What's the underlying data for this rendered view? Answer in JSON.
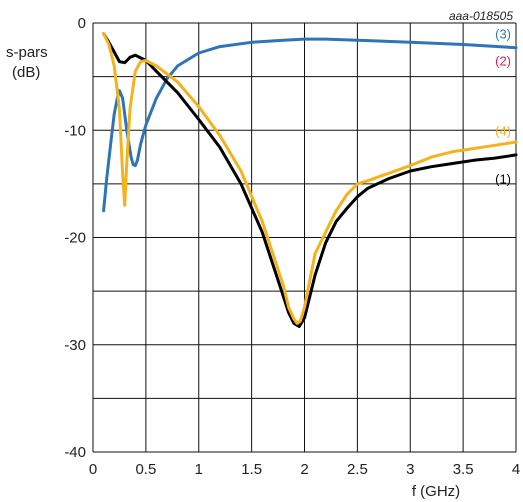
{
  "chart_data": {
    "type": "line",
    "reference": "aaa-018505",
    "ylabel_line1": "s-pars",
    "ylabel_line2": "(dB)",
    "xlabel": "f (GHz)",
    "xlim": [
      0,
      4
    ],
    "ylim": [
      -40,
      0
    ],
    "x_ticks": [
      0,
      0.5,
      1,
      1.5,
      2,
      2.5,
      3,
      3.5,
      4
    ],
    "x_tick_labels": [
      "0",
      "0.5",
      "1",
      "1.5",
      "2",
      "2.5",
      "3",
      "3.5",
      "4"
    ],
    "y_ticks": [
      0,
      -10,
      -20,
      -30,
      -40
    ],
    "y_tick_labels": [
      "0",
      "-10",
      "-20",
      "-30",
      "-40"
    ],
    "y_gridlines": [
      0,
      -5,
      -10,
      -15,
      -20,
      -25,
      -30,
      -35,
      -40
    ],
    "grid": true,
    "series": [
      {
        "name": "(1)",
        "color": "#000000",
        "x": [
          0.1,
          0.15,
          0.2,
          0.25,
          0.3,
          0.35,
          0.4,
          0.5,
          0.6,
          0.8,
          1.0,
          1.2,
          1.4,
          1.6,
          1.7,
          1.8,
          1.85,
          1.9,
          1.95,
          2.0,
          2.05,
          2.1,
          2.2,
          2.3,
          2.4,
          2.5,
          2.6,
          2.8,
          3.0,
          3.2,
          3.4,
          3.6,
          3.8,
          4.0
        ],
        "y": [
          -1.0,
          -1.8,
          -2.7,
          -3.6,
          -3.7,
          -3.2,
          -3.0,
          -3.5,
          -4.5,
          -6.5,
          -9.0,
          -11.6,
          -15.0,
          -19.5,
          -22.5,
          -25.5,
          -27.0,
          -28.0,
          -28.3,
          -27.5,
          -25.5,
          -23.5,
          -20.5,
          -18.5,
          -17.3,
          -16.2,
          -15.4,
          -14.5,
          -13.8,
          -13.4,
          -13.1,
          -12.8,
          -12.6,
          -12.3
        ]
      },
      {
        "name": "(2)",
        "color": "#e6195a",
        "x": [],
        "y": []
      },
      {
        "name": "(3)",
        "color": "#2e75b6",
        "x": [
          0.1,
          0.13,
          0.17,
          0.2,
          0.23,
          0.25,
          0.28,
          0.32,
          0.36,
          0.38,
          0.4,
          0.42,
          0.45,
          0.5,
          0.6,
          0.7,
          0.8,
          1.0,
          1.2,
          1.5,
          1.8,
          2.0,
          2.2,
          2.5,
          3.0,
          3.5,
          4.0
        ],
        "y": [
          -17.5,
          -14.5,
          -11.0,
          -8.5,
          -7.0,
          -6.3,
          -7.0,
          -10.0,
          -12.5,
          -13.2,
          -13.3,
          -12.8,
          -11.3,
          -9.5,
          -7.0,
          -5.2,
          -4.0,
          -2.8,
          -2.2,
          -1.8,
          -1.6,
          -1.5,
          -1.5,
          -1.6,
          -1.8,
          -2.0,
          -2.3
        ]
      },
      {
        "name": "(4)",
        "color": "#f5b21c",
        "x": [
          0.1,
          0.15,
          0.2,
          0.25,
          0.28,
          0.3,
          0.32,
          0.35,
          0.4,
          0.45,
          0.5,
          0.6,
          0.8,
          1.0,
          1.2,
          1.4,
          1.6,
          1.7,
          1.8,
          1.85,
          1.9,
          1.93,
          1.96,
          2.0,
          2.05,
          2.1,
          2.2,
          2.3,
          2.4,
          2.5,
          2.6,
          2.8,
          3.0,
          3.2,
          3.4,
          3.6,
          3.8,
          4.0
        ],
        "y": [
          -1.0,
          -2.0,
          -4.0,
          -8.0,
          -14.0,
          -17.0,
          -13.0,
          -8.0,
          -4.5,
          -3.6,
          -3.5,
          -4.0,
          -5.5,
          -7.8,
          -10.5,
          -13.8,
          -18.5,
          -21.5,
          -24.5,
          -26.5,
          -27.6,
          -28.0,
          -27.8,
          -26.5,
          -24.0,
          -21.5,
          -19.5,
          -17.5,
          -16.0,
          -15.0,
          -14.7,
          -14.0,
          -13.3,
          -12.5,
          -12.0,
          -11.7,
          -11.4,
          -11.1
        ]
      }
    ],
    "series_labels": [
      "(1)",
      "(2)",
      "(3)",
      "(4)"
    ]
  }
}
